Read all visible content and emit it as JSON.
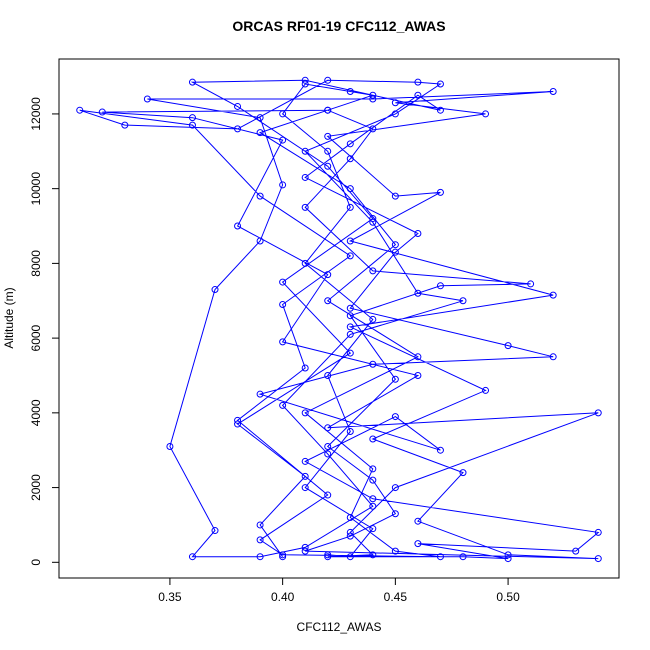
{
  "chart_data": {
    "type": "scatter-line",
    "title": "ORCAS RF01-19 CFC112_AWAS",
    "x_label": "CFC112_AWAS",
    "y_label": "Altitude (m)",
    "xlim": [
      0.3008,
      0.5492
    ],
    "ylim": [
      -420,
      13470
    ],
    "xticks": [
      0.35,
      {
        "value": 0.4,
        "label": "0.40"
      },
      0.45,
      {
        "value": 0.5,
        "label": "0.50"
      }
    ],
    "yticks": [
      0,
      2000,
      4000,
      6000,
      8000,
      10000,
      12000
    ],
    "grid": false,
    "marker": "open-circle",
    "series": [
      {
        "color": "#0000ff",
        "x": [
          0.42,
          0.43,
          0.44,
          0.41,
          0.43,
          0.42,
          0.44,
          0.41,
          0.43,
          0.42,
          0.4,
          0.41,
          0.43,
          0.44,
          0.42,
          0.39,
          0.43,
          0.45,
          0.42,
          0.46,
          0.41,
          0.44,
          0.43,
          0.45,
          0.47,
          0.4,
          0.39,
          0.42,
          0.38,
          0.41,
          0.4,
          0.43,
          0.39,
          0.36,
          0.31,
          0.33,
          0.38,
          0.42,
          0.46,
          0.47,
          0.45,
          0.41,
          0.44,
          0.46,
          0.48,
          0.43,
          0.4,
          0.42,
          0.44,
          0.41,
          0.39,
          0.36,
          0.37,
          0.35,
          0.37,
          0.39,
          0.4,
          0.39,
          0.34,
          0.44,
          0.52,
          0.45,
          0.49,
          0.42,
          0.45,
          0.47,
          0.43,
          0.52,
          0.43,
          0.49,
          0.44,
          0.48,
          0.46,
          0.5,
          0.54,
          0.41,
          0.43,
          0.45,
          0.44,
          0.42,
          0.45,
          0.43,
          0.47,
          0.51,
          0.44,
          0.41,
          0.43,
          0.44,
          0.42,
          0.32,
          0.36,
          0.4,
          0.38,
          0.42,
          0.4,
          0.46,
          0.42,
          0.54,
          0.45,
          0.43,
          0.44,
          0.42,
          0.48,
          0.5,
          0.46,
          0.53,
          0.54,
          0.44,
          0.41,
          0.45,
          0.47,
          0.39,
          0.44,
          0.52,
          0.5,
          0.43,
          0.45,
          0.46,
          0.41,
          0.43,
          0.46,
          0.47,
          0.41,
          0.36,
          0.38,
          0.42,
          0.44,
          0.4,
          0.43,
          0.38,
          0.41,
          0.39,
          0.4
        ],
        "values": [
          200,
          150,
          900,
          2000,
          3500,
          5000,
          6500,
          8000,
          9500,
          11000,
          12000,
          12800,
          12600,
          12500,
          12100,
          11500,
          10000,
          8500,
          7000,
          5500,
          4000,
          2500,
          1200,
          300,
          150,
          200,
          600,
          1800,
          3800,
          5200,
          6900,
          8200,
          9800,
          11700,
          12100,
          11700,
          11600,
          12900,
          12850,
          12800,
          12000,
          11000,
          9100,
          7200,
          7000,
          6100,
          4200,
          2900,
          1500,
          400,
          150,
          150,
          850,
          3100,
          7300,
          8600,
          10100,
          11900,
          12400,
          12400,
          12600,
          12300,
          12000,
          11400,
          9800,
          9900,
          8600,
          7150,
          6300,
          4600,
          3300,
          2400,
          1100,
          200,
          100,
          300,
          700,
          1300,
          2200,
          3100,
          4900,
          6600,
          7400,
          7450,
          7800,
          9500,
          10800,
          11600,
          12100,
          12050,
          11900,
          11300,
          9000,
          7700,
          5900,
          5000,
          3600,
          4000,
          2000,
          800,
          200,
          150,
          150,
          100,
          500,
          300,
          800,
          1700,
          2700,
          3900,
          3000,
          4500,
          5300,
          5500,
          5800,
          6800,
          8300,
          8800,
          10300,
          11200,
          12500,
          12100,
          12900,
          12850,
          12200,
          10600,
          9200,
          7500,
          5600,
          3700,
          2300,
          1000,
          150
        ]
      }
    ]
  }
}
